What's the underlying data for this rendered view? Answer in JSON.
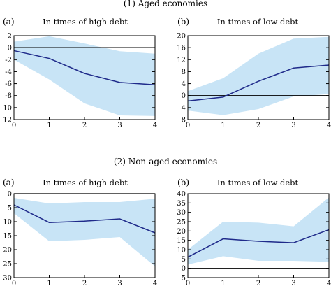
{
  "section_titles": [
    "(1) Aged economies",
    "(2) Non-aged economies"
  ],
  "colors": {
    "band": "#c8e4f6",
    "line": "#1f2a8a",
    "zero_line": "#000000",
    "axes": "#000000"
  },
  "chart_data": [
    {
      "type": "line",
      "panel_label": "(a)",
      "title": "In times of high debt",
      "section": "(1) Aged economies",
      "x": [
        0,
        1,
        2,
        3,
        4
      ],
      "xlim": [
        0,
        4
      ],
      "ylim": [
        -12,
        2
      ],
      "yticks": [
        -12,
        -10,
        -8,
        -6,
        -4,
        -2,
        0,
        2
      ],
      "xticks": [
        0,
        1,
        2,
        3,
        4
      ],
      "series": [
        {
          "role": "estimate",
          "values": [
            -0.5,
            -1.8,
            -4.3,
            -5.8,
            -6.2
          ]
        },
        {
          "role": "upper_band",
          "values": [
            1.0,
            1.9,
            0.7,
            -0.6,
            -1.0
          ]
        },
        {
          "role": "lower_band",
          "values": [
            -2.0,
            -5.3,
            -9.3,
            -11.3,
            -11.4
          ]
        }
      ],
      "zero_line": 0,
      "grid": false
    },
    {
      "type": "line",
      "panel_label": "(b)",
      "title": "In times of low debt",
      "section": "(1) Aged economies",
      "x": [
        0,
        1,
        2,
        3,
        4
      ],
      "xlim": [
        0,
        4
      ],
      "ylim": [
        -8,
        20
      ],
      "yticks": [
        -8,
        -4,
        0,
        4,
        8,
        12,
        16,
        20
      ],
      "xticks": [
        0,
        1,
        2,
        3,
        4
      ],
      "series": [
        {
          "role": "estimate",
          "values": [
            -1.8,
            -0.5,
            4.8,
            9.2,
            10.2
          ]
        },
        {
          "role": "upper_band",
          "values": [
            1.5,
            5.8,
            14.0,
            19.0,
            19.6
          ]
        },
        {
          "role": "lower_band",
          "values": [
            -5.0,
            -6.5,
            -4.5,
            -0.3,
            0.5
          ]
        }
      ],
      "zero_line": 0,
      "grid": false
    },
    {
      "type": "line",
      "panel_label": "(a)",
      "title": "In times of high debt",
      "section": "(2) Non-aged economies",
      "x": [
        0,
        1,
        2,
        3,
        4
      ],
      "xlim": [
        0,
        4
      ],
      "ylim": [
        -30,
        0
      ],
      "yticks": [
        -30,
        -25,
        -20,
        -15,
        -10,
        -5,
        0
      ],
      "xticks": [
        0,
        1,
        2,
        3,
        4
      ],
      "series": [
        {
          "role": "estimate",
          "values": [
            -4.0,
            -10.3,
            -9.8,
            -9.0,
            -14.0
          ]
        },
        {
          "role": "upper_band",
          "values": [
            -1.5,
            -3.5,
            -3.0,
            -3.0,
            -1.8
          ]
        },
        {
          "role": "lower_band",
          "values": [
            -7.0,
            -17.0,
            -16.5,
            -15.5,
            -26.0
          ]
        }
      ],
      "zero_line": 0,
      "grid": false
    },
    {
      "type": "line",
      "panel_label": "(b)",
      "title": "In times of low debt",
      "section": "(2) Non-aged economies",
      "x": [
        0,
        1,
        2,
        3,
        4
      ],
      "xlim": [
        0,
        4
      ],
      "ylim": [
        -5,
        40
      ],
      "yticks": [
        -5,
        0,
        5,
        10,
        15,
        20,
        25,
        30,
        35,
        40
      ],
      "xticks": [
        0,
        1,
        2,
        3,
        4
      ],
      "series": [
        {
          "role": "estimate",
          "values": [
            6.0,
            15.8,
            14.5,
            13.7,
            20.7
          ]
        },
        {
          "role": "upper_band",
          "values": [
            10.0,
            25.0,
            24.5,
            22.5,
            38.0
          ]
        },
        {
          "role": "lower_band",
          "values": [
            2.0,
            6.5,
            4.0,
            4.0,
            3.5
          ]
        }
      ],
      "zero_line": 0,
      "grid": false
    }
  ]
}
